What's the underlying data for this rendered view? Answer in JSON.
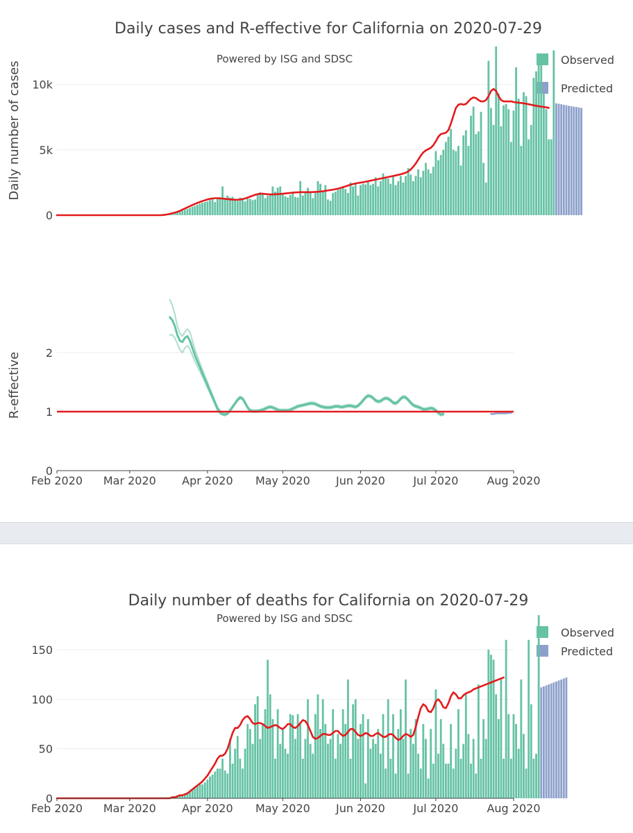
{
  "colors": {
    "observed": "#66c2a5",
    "predicted": "#8da0cb",
    "trend": "#e41a1c",
    "reff": "#66c2a5",
    "grid": "#eeeeee",
    "separator": "#e8ecf1"
  },
  "legend": {
    "observed": "Observed",
    "predicted": "Predicted"
  },
  "x_axis": {
    "ticks": [
      "Feb 2020",
      "Mar 2020",
      "Apr 2020",
      "May 2020",
      "Jun 2020",
      "Jul 2020",
      "Aug 2020"
    ],
    "tick_dates": [
      "2020-02-01",
      "2020-03-01",
      "2020-04-01",
      "2020-05-01",
      "2020-06-01",
      "2020-07-01",
      "2020-08-01"
    ]
  },
  "chart_data": [
    {
      "type": "bar",
      "id": "cases",
      "title": "Daily cases and R-effective for California on 2020-07-29",
      "subtitle": "Powered by ISG and SDSC",
      "ylabel": "Daily number of cases",
      "xlabel": "",
      "ylim": [
        0,
        13000
      ],
      "yticks": [
        0,
        5000,
        10000
      ],
      "ytick_labels": [
        "0",
        "5k",
        "10k"
      ],
      "grid": true,
      "legend_position": "top-right",
      "observed_start": "2020-03-16",
      "observed": [
        80,
        100,
        130,
        170,
        210,
        260,
        330,
        400,
        480,
        560,
        650,
        720,
        800,
        880,
        950,
        1000,
        1050,
        1150,
        1220,
        1000,
        1300,
        1250,
        2200,
        1300,
        1500,
        1350,
        1400,
        1250,
        1100,
        1350,
        1300,
        1050,
        1400,
        1250,
        1150,
        1200,
        1600,
        1750,
        1650,
        1300,
        1500,
        1600,
        2200,
        1800,
        2100,
        2200,
        1650,
        1450,
        1350,
        1550,
        1800,
        1400,
        1350,
        2600,
        1500,
        1800,
        2100,
        1750,
        1300,
        1700,
        2600,
        2400,
        1800,
        2300,
        1200,
        1100,
        1700,
        1800,
        1950,
        2000,
        2100,
        2000,
        1700,
        2500,
        2200,
        2500,
        1500,
        2300,
        2400,
        2350,
        2600,
        2300,
        2400,
        2900,
        2200,
        2600,
        3200,
        2900,
        2800,
        2400,
        3000,
        2300,
        2600,
        3000,
        2500,
        3000,
        3600,
        3100,
        2600,
        3000,
        3500,
        2900,
        3400,
        4000,
        3500,
        3200,
        3700,
        4900,
        4200,
        4600,
        5000,
        5600,
        6000,
        6600,
        5000,
        4900,
        5300,
        3800,
        6100,
        6500,
        5300,
        7600,
        8300,
        6200,
        6400,
        7900,
        4000,
        2500,
        11800,
        8200,
        6900,
        12900,
        9300,
        6800,
        8400,
        8500,
        8100,
        5600,
        8000,
        11300,
        8900,
        5300,
        9400,
        9100,
        5800,
        6900,
        10500,
        11000,
        11500,
        12300,
        9300,
        8100,
        5800,
        5800,
        12600
      ],
      "predicted": [
        8550,
        8520,
        8480,
        8440,
        8400,
        8360,
        8330,
        8300,
        8270,
        8240,
        8200
      ],
      "trend_start": "2020-02-01",
      "trend": [
        0,
        0,
        0,
        0,
        0,
        0,
        0,
        0,
        0,
        0,
        0,
        0,
        0,
        0,
        0,
        0,
        0,
        0,
        0,
        0,
        0,
        0,
        0,
        0,
        0,
        0,
        0,
        0,
        0,
        0,
        0,
        0,
        0,
        0,
        0,
        0,
        0,
        0,
        0,
        0,
        0,
        0,
        10,
        30,
        60,
        100,
        150,
        200,
        260,
        330,
        420,
        510,
        600,
        690,
        780,
        860,
        940,
        1010,
        1080,
        1140,
        1200,
        1250,
        1280,
        1300,
        1300,
        1290,
        1270,
        1250,
        1230,
        1210,
        1190,
        1180,
        1180,
        1200,
        1230,
        1280,
        1350,
        1420,
        1490,
        1560,
        1610,
        1640,
        1640,
        1620,
        1600,
        1590,
        1590,
        1600,
        1610,
        1620,
        1640,
        1660,
        1680,
        1700,
        1720,
        1740,
        1750,
        1760,
        1760,
        1760,
        1760,
        1760,
        1770,
        1780,
        1790,
        1810,
        1830,
        1860,
        1890,
        1920,
        1950,
        1990,
        2030,
        2080,
        2140,
        2200,
        2270,
        2330,
        2380,
        2420,
        2460,
        2490,
        2520,
        2560,
        2600,
        2640,
        2680,
        2720,
        2760,
        2800,
        2840,
        2880,
        2920,
        2960,
        3000,
        3040,
        3080,
        3130,
        3180,
        3250,
        3350,
        3500,
        3700,
        3950,
        4250,
        4550,
        4800,
        4950,
        5050,
        5150,
        5350,
        5650,
        6000,
        6200,
        6250,
        6300,
        6500,
        7000,
        7600,
        8200,
        8450,
        8500,
        8450,
        8500,
        8700,
        8900,
        9000,
        8950,
        8800,
        8700,
        8700,
        8800,
        9100,
        9500,
        9650,
        9500,
        9100,
        8800,
        8700,
        8700,
        8700,
        8700,
        8650,
        8620,
        8600,
        8580,
        8550,
        8520,
        8480,
        8440,
        8400,
        8360,
        8330,
        8300,
        8270,
        8240,
        8200
      ]
    },
    {
      "type": "line",
      "id": "reff",
      "title": "",
      "ylabel": "R-effective",
      "xlabel": "",
      "ylim": [
        0,
        3.0
      ],
      "yticks": [
        0,
        1,
        2
      ],
      "ytick_labels": [
        "0",
        "1",
        "2"
      ],
      "grid": true,
      "reference_line": 1,
      "series_start": "2020-03-17",
      "series": [
        {
          "name": "R-effective",
          "values": [
            2.6,
            2.55,
            2.45,
            2.3,
            2.2,
            2.18,
            2.25,
            2.28,
            2.2,
            2.08,
            1.95,
            1.85,
            1.75,
            1.65,
            1.55,
            1.45,
            1.35,
            1.25,
            1.15,
            1.05,
            0.99,
            0.96,
            0.95,
            0.97,
            1.02,
            1.08,
            1.14,
            1.2,
            1.24,
            1.22,
            1.15,
            1.07,
            1.02,
            1.01,
            1.01,
            1.01,
            1.02,
            1.03,
            1.05,
            1.07,
            1.08,
            1.07,
            1.05,
            1.03,
            1.02,
            1.02,
            1.02,
            1.02,
            1.03,
            1.05,
            1.07,
            1.09,
            1.1,
            1.11,
            1.12,
            1.13,
            1.14,
            1.14,
            1.13,
            1.11,
            1.09,
            1.08,
            1.07,
            1.07,
            1.07,
            1.08,
            1.09,
            1.09,
            1.08,
            1.08,
            1.09,
            1.1,
            1.1,
            1.09,
            1.08,
            1.1,
            1.14,
            1.19,
            1.24,
            1.27,
            1.26,
            1.23,
            1.19,
            1.17,
            1.18,
            1.21,
            1.23,
            1.22,
            1.19,
            1.15,
            1.14,
            1.17,
            1.22,
            1.25,
            1.24,
            1.2,
            1.15,
            1.11,
            1.09,
            1.08,
            1.06,
            1.04,
            1.04,
            1.05,
            1.06,
            1.05,
            1.02,
            0.98,
            0.95,
            0.96
          ]
        },
        {
          "name": "R-effective upper",
          "values": [
            2.9,
            2.8,
            2.65,
            2.45,
            2.33,
            2.28,
            2.35,
            2.4,
            2.35,
            2.2,
            2.05,
            1.93,
            1.82,
            1.71,
            1.6,
            1.5,
            1.39,
            1.29,
            1.18,
            1.08,
            1.02,
            0.98,
            0.97,
            0.99,
            1.04,
            1.1,
            1.16,
            1.22,
            1.26,
            1.24,
            1.17,
            1.09,
            1.04,
            1.03,
            1.03,
            1.03,
            1.04,
            1.05,
            1.07,
            1.09,
            1.1,
            1.09,
            1.07,
            1.05,
            1.04,
            1.04,
            1.04,
            1.04,
            1.05,
            1.07,
            1.09,
            1.11,
            1.12,
            1.13,
            1.14,
            1.15,
            1.16,
            1.16,
            1.15,
            1.13,
            1.11,
            1.1,
            1.09,
            1.09,
            1.09,
            1.1,
            1.11,
            1.11,
            1.1,
            1.1,
            1.11,
            1.12,
            1.12,
            1.11,
            1.1,
            1.12,
            1.16,
            1.21,
            1.26,
            1.29,
            1.28,
            1.25,
            1.21,
            1.19,
            1.2,
            1.23,
            1.25,
            1.24,
            1.21,
            1.17,
            1.16,
            1.19,
            1.24,
            1.27,
            1.26,
            1.22,
            1.17,
            1.13,
            1.11,
            1.1,
            1.08,
            1.06,
            1.06,
            1.07,
            1.08,
            1.07,
            1.04,
            1.0,
            0.97,
            0.98
          ]
        },
        {
          "name": "R-effective lower",
          "values": [
            2.3,
            2.3,
            2.25,
            2.15,
            2.05,
            2.0,
            2.08,
            2.12,
            2.06,
            1.95,
            1.85,
            1.76,
            1.68,
            1.59,
            1.5,
            1.4,
            1.31,
            1.21,
            1.12,
            1.02,
            0.96,
            0.94,
            0.93,
            0.95,
            1.0,
            1.06,
            1.12,
            1.18,
            1.22,
            1.2,
            1.13,
            1.05,
            1.0,
            0.99,
            0.99,
            0.99,
            1.0,
            1.01,
            1.03,
            1.05,
            1.06,
            1.05,
            1.03,
            1.01,
            1.0,
            1.0,
            1.0,
            1.0,
            1.01,
            1.03,
            1.05,
            1.07,
            1.08,
            1.09,
            1.1,
            1.11,
            1.12,
            1.12,
            1.11,
            1.09,
            1.07,
            1.06,
            1.05,
            1.05,
            1.05,
            1.06,
            1.07,
            1.07,
            1.06,
            1.06,
            1.07,
            1.08,
            1.08,
            1.07,
            1.06,
            1.08,
            1.12,
            1.17,
            1.22,
            1.25,
            1.24,
            1.21,
            1.17,
            1.15,
            1.16,
            1.19,
            1.21,
            1.2,
            1.17,
            1.13,
            1.12,
            1.15,
            1.2,
            1.23,
            1.22,
            1.18,
            1.13,
            1.09,
            1.07,
            1.06,
            1.04,
            1.02,
            1.02,
            1.03,
            1.04,
            1.03,
            1.0,
            0.96,
            0.93,
            0.94
          ]
        }
      ],
      "predicted_start": "2020-07-23",
      "predicted": [
        0.96,
        0.96,
        0.97,
        0.97,
        0.97,
        0.97,
        0.97,
        0.98,
        0.98
      ]
    },
    {
      "type": "bar",
      "id": "deaths",
      "title": "Daily number of deaths for California on 2020-07-29",
      "subtitle": "Powered by ISG and SDSC",
      "ylabel": "",
      "xlabel": "",
      "ylim": [
        0,
        190
      ],
      "yticks": [
        0,
        50,
        100,
        150
      ],
      "ytick_labels": [
        "0",
        "50",
        "100",
        "150"
      ],
      "grid": true,
      "legend_position": "top-right",
      "observed_start": "2020-03-16",
      "observed": [
        1,
        1,
        2,
        2,
        3,
        3,
        4,
        5,
        6,
        7,
        9,
        10,
        12,
        14,
        14,
        16,
        19,
        22,
        24,
        27,
        30,
        30,
        40,
        28,
        25,
        60,
        35,
        50,
        63,
        40,
        30,
        50,
        75,
        70,
        55,
        95,
        103,
        60,
        75,
        90,
        140,
        105,
        80,
        40,
        90,
        55,
        70,
        50,
        45,
        85,
        84,
        60,
        85,
        75,
        40,
        60,
        100,
        55,
        45,
        85,
        105,
        70,
        100,
        75,
        55,
        60,
        90,
        40,
        65,
        55,
        90,
        75,
        120,
        40,
        95,
        100,
        60,
        75,
        85,
        15,
        80,
        50,
        60,
        55,
        70,
        45,
        85,
        30,
        100,
        40,
        85,
        25,
        70,
        90,
        60,
        120,
        25,
        70,
        55,
        80,
        45,
        30,
        75,
        60,
        20,
        70,
        35,
        110,
        45,
        80,
        55,
        35,
        35,
        75,
        30,
        50,
        90,
        40,
        55,
        105,
        65,
        35,
        60,
        25,
        115,
        40,
        80,
        60,
        150,
        145,
        140,
        105,
        80,
        120,
        40,
        160,
        85,
        40,
        85,
        75,
        50,
        120,
        65,
        30,
        160,
        95,
        40,
        45,
        185
      ],
      "predicted": [
        112,
        113,
        114,
        115,
        116,
        117,
        118,
        119,
        120,
        121,
        122
      ],
      "trend_start": "2020-02-01",
      "trend": [
        0,
        0,
        0,
        0,
        0,
        0,
        0,
        0,
        0,
        0,
        0,
        0,
        0,
        0,
        0,
        0,
        0,
        0,
        0,
        0,
        0,
        0,
        0,
        0,
        0,
        0,
        0,
        0,
        0,
        0,
        0,
        0,
        0,
        0,
        0,
        0,
        0,
        0,
        0,
        0,
        0,
        0,
        0,
        0,
        0,
        0,
        1,
        1,
        2,
        3,
        3,
        4,
        5,
        7,
        9,
        11,
        13,
        15,
        17,
        20,
        23,
        27,
        31,
        35,
        40,
        43,
        43,
        45,
        50,
        58,
        66,
        71,
        71,
        74,
        79,
        82,
        83,
        80,
        76,
        75,
        76,
        76,
        75,
        73,
        71,
        72,
        73,
        74,
        73,
        71,
        70,
        72,
        75,
        75,
        72,
        71,
        73,
        76,
        79,
        78,
        74,
        68,
        62,
        60,
        61,
        63,
        65,
        65,
        64,
        64,
        66,
        68,
        68,
        65,
        63,
        64,
        67,
        70,
        70,
        67,
        64,
        63,
        64,
        66,
        65,
        63,
        63,
        65,
        66,
        64,
        62,
        62,
        64,
        65,
        64,
        61,
        59,
        60,
        63,
        65,
        64,
        62,
        64,
        72,
        82,
        91,
        95,
        93,
        88,
        87,
        91,
        98,
        100,
        97,
        92,
        91,
        96,
        103,
        107,
        105,
        101,
        101,
        104,
        106,
        107,
        108,
        110,
        111,
        112,
        113,
        114,
        115,
        116,
        117,
        118,
        119,
        120,
        121,
        122
      ]
    }
  ]
}
